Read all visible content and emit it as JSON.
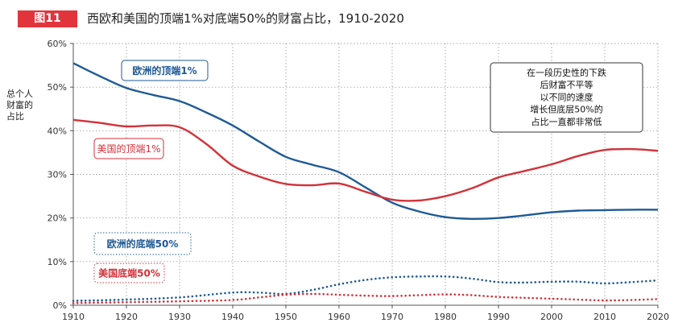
{
  "figure": {
    "badge": "图11",
    "title": "西欧和美国的顶端1%对底端50%的财富占比，1910-2020"
  },
  "chart_data": {
    "type": "line",
    "title": "西欧和美国的顶端1%对底端50%的财富占比，1910-2020",
    "ylabel": "总个人财富的占比",
    "xlabel": "",
    "xlim": [
      1910,
      2020
    ],
    "ylim": [
      0,
      60
    ],
    "x_ticks": [
      1910,
      1920,
      1930,
      1940,
      1950,
      1960,
      1970,
      1980,
      1990,
      2000,
      2010,
      2020
    ],
    "y_ticks": [
      "0%",
      "10%",
      "20%",
      "30%",
      "40%",
      "50%",
      "60%"
    ],
    "grid": true,
    "series": [
      {
        "name": "欧洲的顶端1%",
        "color": "#1f5a96",
        "style": "solid",
        "x": [
          1910,
          1915,
          1920,
          1925,
          1930,
          1935,
          1940,
          1945,
          1950,
          1955,
          1960,
          1965,
          1970,
          1975,
          1980,
          1985,
          1990,
          1995,
          2000,
          2005,
          2010,
          2015,
          2020
        ],
        "y": [
          55.5,
          52.5,
          49.8,
          48.2,
          46.8,
          44.2,
          41.2,
          37.5,
          34.0,
          32.2,
          30.5,
          27.0,
          23.5,
          21.5,
          20.2,
          19.8,
          20.0,
          20.6,
          21.3,
          21.7,
          21.8,
          21.9,
          21.9
        ]
      },
      {
        "name": "美国的顶端1%",
        "color": "#d2323a",
        "style": "solid",
        "x": [
          1910,
          1915,
          1920,
          1925,
          1930,
          1935,
          1940,
          1945,
          1950,
          1955,
          1960,
          1965,
          1970,
          1975,
          1980,
          1985,
          1990,
          1995,
          2000,
          2005,
          2010,
          2015,
          2020
        ],
        "y": [
          42.5,
          41.8,
          41.0,
          41.2,
          40.8,
          37.0,
          32.0,
          29.5,
          27.8,
          27.5,
          27.9,
          26.0,
          24.2,
          24.0,
          25.0,
          26.8,
          29.3,
          30.8,
          32.3,
          34.2,
          35.6,
          35.8,
          35.4
        ]
      },
      {
        "name": "欧洲的底端50%",
        "color": "#1f5a96",
        "style": "dotted",
        "x": [
          1910,
          1920,
          1930,
          1940,
          1945,
          1950,
          1955,
          1960,
          1965,
          1970,
          1975,
          1980,
          1985,
          1990,
          1995,
          2000,
          2005,
          2010,
          2015,
          2020
        ],
        "y": [
          1.0,
          1.3,
          1.8,
          2.9,
          2.9,
          2.6,
          3.5,
          4.8,
          5.8,
          6.4,
          6.6,
          6.6,
          6.1,
          5.3,
          5.2,
          5.4,
          5.4,
          5.0,
          5.3,
          5.7
        ]
      },
      {
        "name": "美国底端50%",
        "color": "#d2323a",
        "style": "dotted",
        "x": [
          1910,
          1920,
          1930,
          1940,
          1945,
          1950,
          1955,
          1960,
          1965,
          1970,
          1975,
          1980,
          1985,
          1990,
          1995,
          2000,
          2005,
          2010,
          2015,
          2020
        ],
        "y": [
          0.5,
          0.7,
          0.9,
          1.2,
          1.8,
          2.4,
          2.6,
          2.4,
          2.2,
          2.1,
          2.3,
          2.5,
          2.3,
          1.9,
          1.7,
          1.5,
          1.3,
          1.1,
          1.2,
          1.4
        ]
      }
    ],
    "annotation": "在一段历史性的下跌后财富不平等以不同的速度增长但底层50%的占比一直都非常低"
  }
}
